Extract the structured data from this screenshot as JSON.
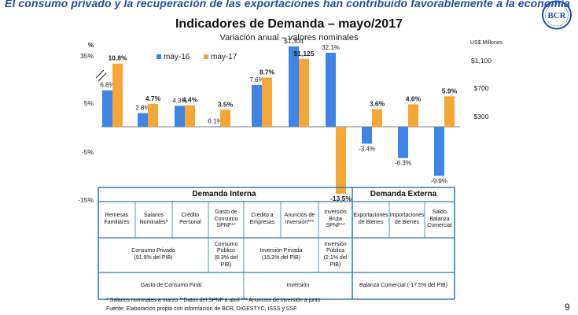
{
  "headline": "El consumo privado y la recuperación de las exportaciones han contribuido favorablemente a la economía",
  "logo_text": "BCR",
  "page_number": "9",
  "colors": {
    "may16": "#3d85e6",
    "may17": "#f7a535",
    "headline": "#1f4e9c",
    "table_border": "#2f7bb0"
  },
  "chart_data": {
    "type": "bar",
    "title": "Indicadores de Demanda – mayo/2017",
    "subtitle": "Variación anual – valores nominales",
    "left_axis_unit": "%",
    "right_axis_unit": "US$ Millones",
    "left_ticks": [
      "35%",
      "5%",
      "-5%",
      "-15%"
    ],
    "right_ticks": [
      "$1,100",
      "$700",
      "$300"
    ],
    "axis_break": true,
    "legend": {
      "position": "top-left",
      "entries": [
        "may-16",
        "may-17"
      ]
    },
    "categories": [
      "Remesas Familiares",
      "Salarios Nominales*",
      "Crédito Personal",
      "Gasto de Consumo SPNF**",
      "Crédito a Empresas",
      "Anuncios de Inversión***",
      "Inversión Bruta SPNF**",
      "Exportaciones de Bienes",
      "Importaciones de Bienes",
      "Saldo Balanza Comercial"
    ],
    "series": [
      {
        "name": "may-16",
        "values": [
          6.8,
          2.8,
          4.3,
          0.1,
          7.6,
          1304,
          32.1,
          -3.4,
          -6.3,
          -9.9
        ],
        "labels": [
          "6.8%",
          "2.8%",
          "4.3%",
          "0.1%",
          "7.6%",
          "$1,304",
          "32.1%",
          "-3.4%",
          "-6.3%",
          "-9.9%"
        ]
      },
      {
        "name": "may-17",
        "values": [
          10.8,
          4.7,
          4.4,
          3.5,
          8.7,
          1125,
          -13.5,
          3.6,
          4.6,
          5.9
        ],
        "labels": [
          "10.8%",
          "4.7%",
          "4.4%",
          "3.5%",
          "8.7%",
          "$1,125",
          "-13.5%",
          "3.6%",
          "4.6%",
          "5.9%"
        ]
      }
    ],
    "units_note": "Anuncios de Inversión values in US$ Millones (right axis)"
  },
  "table": {
    "section_interna": "Demanda Interna",
    "section_externa": "Demanda Externa",
    "row1": [
      "Remesas Familiares",
      "Salarios Nominales*",
      "Crédito Personal",
      "Gasto de Consumo SPNF**",
      "Crédito a Empresas",
      "Anuncios de Inversión***",
      "Inversión Bruta SPNF**",
      "Exportaciones de Bienes",
      "Importaciones de Bienes",
      "Saldo Balanza Comercial"
    ],
    "consumo_privado": "Consumo Privado",
    "consumo_privado_pct": "(91.9% del PIB)",
    "consumo_publico": "Consumo Público",
    "consumo_publico_pct": "(8.3% del PIB)",
    "inversion_privada": "Inversión Privada",
    "inversion_privada_pct": "(15.2% del PIB)",
    "inversion_publica": "Inversión Pública",
    "inversion_publica_pct": "(2.1% del PIB)",
    "gasto_consumo_final": "Gasto de Consumo Final",
    "inversion": "Inversión",
    "balanza": "Balanza Comercial (-17.5% del PIB)"
  },
  "footnotes": {
    "line1": "* Salarios nominales a marzo    **Datos del SPNF a abril    *** Anuncios de inversión a junio",
    "line2": "Fuente: Elaboración propia con información de BCR, DIGESTYC, ISSS y SSF."
  }
}
